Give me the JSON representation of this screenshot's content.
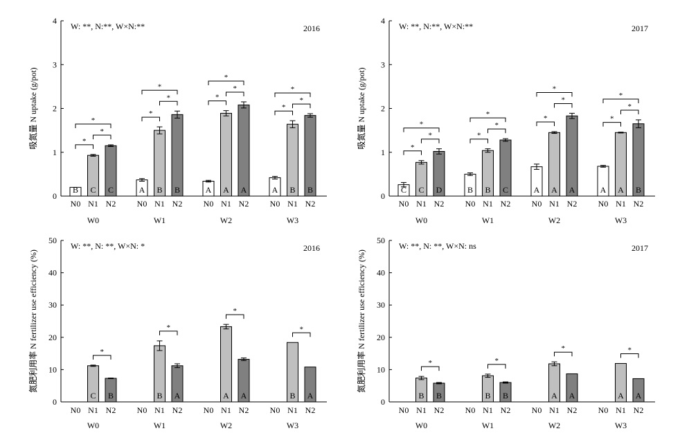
{
  "colors": {
    "N0": "#ffffff",
    "N1": "#bfbfbf",
    "N2": "#808080",
    "axis": "#000000"
  },
  "chart_data": [
    {
      "type": "bar",
      "panel": "top-left",
      "ylabel_cn": "吸氮量",
      "ylabel": "N uptake (g/pot)",
      "ylim": [
        0,
        4
      ],
      "yticks": [
        "0",
        "1",
        "2",
        "3",
        "4"
      ],
      "year": "2016",
      "annotation": "W: **,  N:**,  W×N:**",
      "groups": [
        "W0",
        "W1",
        "W2",
        "W3"
      ],
      "subcategories": [
        "N0",
        "N1",
        "N2"
      ],
      "series": [
        {
          "values": [
            0.2,
            0.93,
            1.15
          ],
          "errors": [
            0.0,
            0.02,
            0.02
          ],
          "letters": [
            "B",
            "C",
            "C"
          ]
        },
        {
          "values": [
            0.37,
            1.5,
            1.86
          ],
          "errors": [
            0.03,
            0.08,
            0.08
          ],
          "letters": [
            "A",
            "B",
            "B"
          ]
        },
        {
          "values": [
            0.34,
            1.89,
            2.08
          ],
          "errors": [
            0.02,
            0.06,
            0.07
          ],
          "letters": [
            "A",
            "A",
            "A"
          ]
        },
        {
          "values": [
            0.42,
            1.64,
            1.84
          ],
          "errors": [
            0.03,
            0.08,
            0.04
          ],
          "letters": [
            "A",
            "B",
            "B"
          ]
        }
      ]
    },
    {
      "type": "bar",
      "panel": "top-right",
      "ylabel_cn": "吸氮量",
      "ylabel": "N uptake (g/pot)",
      "ylim": [
        0,
        4
      ],
      "yticks": [
        "0",
        "1",
        "2",
        "3",
        "4"
      ],
      "year": "2017",
      "annotation": "W: **,  N:**,  W×N:**",
      "groups": [
        "W0",
        "W1",
        "W2",
        "W3"
      ],
      "subcategories": [
        "N0",
        "N1",
        "N2"
      ],
      "series": [
        {
          "values": [
            0.26,
            0.77,
            1.02
          ],
          "errors": [
            0.05,
            0.04,
            0.06
          ],
          "letters": [
            "C",
            "C",
            "D"
          ]
        },
        {
          "values": [
            0.5,
            1.04,
            1.28
          ],
          "errors": [
            0.03,
            0.04,
            0.03
          ],
          "letters": [
            "B",
            "B",
            "C"
          ]
        },
        {
          "values": [
            0.67,
            1.45,
            1.83
          ],
          "errors": [
            0.06,
            0.02,
            0.06
          ],
          "letters": [
            "A",
            "A",
            "A"
          ]
        },
        {
          "values": [
            0.68,
            1.45,
            1.65
          ],
          "errors": [
            0.02,
            0.01,
            0.09
          ],
          "letters": [
            "A",
            "A",
            "B"
          ]
        }
      ]
    },
    {
      "type": "bar",
      "panel": "bottom-left",
      "ylabel_cn": "氮肥利用率",
      "ylabel": "N fertilizer use efficiency (%)",
      "ylim": [
        0,
        50
      ],
      "yticks": [
        "0",
        "10",
        "20",
        "30",
        "40",
        "50"
      ],
      "year": "2016",
      "annotation": "W: **,  N: **,  W×N: *",
      "groups": [
        "W0",
        "W1",
        "W2",
        "W3"
      ],
      "subcategories": [
        "N0",
        "N1",
        "N2"
      ],
      "series": [
        {
          "values": [
            null,
            11.2,
            7.3
          ],
          "errors": [
            0,
            0.2,
            0.1
          ],
          "letters": [
            "",
            "C",
            "B"
          ]
        },
        {
          "values": [
            null,
            17.4,
            11.2
          ],
          "errors": [
            0,
            1.5,
            0.6
          ],
          "letters": [
            "",
            "B",
            "A"
          ]
        },
        {
          "values": [
            null,
            23.3,
            13.2
          ],
          "errors": [
            0,
            0.7,
            0.4
          ],
          "letters": [
            "",
            "A",
            "A"
          ]
        },
        {
          "values": [
            null,
            18.4,
            10.8
          ],
          "errors": [
            0,
            0,
            0
          ],
          "letters": [
            "",
            "B",
            "A"
          ]
        }
      ]
    },
    {
      "type": "bar",
      "panel": "bottom-right",
      "ylabel_cn": "氮肥利用率",
      "ylabel": "N fertilizer use efficiency (%)",
      "ylim": [
        0,
        50
      ],
      "yticks": [
        "0",
        "10",
        "20",
        "30",
        "40",
        "50"
      ],
      "year": "2017",
      "annotation": "W: **,  N: **,  W×N: ns",
      "groups": [
        "W0",
        "W1",
        "W2",
        "W3"
      ],
      "subcategories": [
        "N0",
        "N1",
        "N2"
      ],
      "series": [
        {
          "values": [
            null,
            7.4,
            5.8
          ],
          "errors": [
            0,
            0.5,
            0.2
          ],
          "letters": [
            "",
            "B",
            "B"
          ]
        },
        {
          "values": [
            null,
            8.1,
            6.0
          ],
          "errors": [
            0,
            0.5,
            0.2
          ],
          "letters": [
            "",
            "B",
            "B"
          ]
        },
        {
          "values": [
            null,
            11.8,
            8.7
          ],
          "errors": [
            0,
            0.6,
            0
          ],
          "letters": [
            "",
            "A",
            "A"
          ]
        },
        {
          "values": [
            null,
            11.9,
            7.2
          ],
          "errors": [
            0,
            0,
            0
          ],
          "letters": [
            "",
            "A",
            "A"
          ]
        }
      ]
    }
  ]
}
